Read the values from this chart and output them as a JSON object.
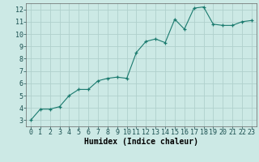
{
  "x": [
    0,
    1,
    2,
    3,
    4,
    5,
    6,
    7,
    8,
    9,
    10,
    11,
    12,
    13,
    14,
    15,
    16,
    17,
    18,
    19,
    20,
    21,
    22,
    23
  ],
  "y": [
    3.0,
    3.9,
    3.9,
    4.1,
    5.0,
    5.5,
    5.5,
    6.2,
    6.4,
    6.5,
    6.4,
    8.5,
    9.4,
    9.6,
    9.3,
    11.2,
    10.4,
    12.1,
    12.2,
    10.8,
    10.7,
    10.7,
    11.0,
    11.1
  ],
  "line_color": "#1a7a6e",
  "marker_color": "#1a7a6e",
  "bg_color": "#cce9e5",
  "grid_color": "#b0d0cc",
  "xlabel": "Humidex (Indice chaleur)",
  "xlim": [
    -0.5,
    23.5
  ],
  "ylim": [
    2.5,
    12.5
  ],
  "yticks": [
    3,
    4,
    5,
    6,
    7,
    8,
    9,
    10,
    11,
    12
  ],
  "xticks": [
    0,
    1,
    2,
    3,
    4,
    5,
    6,
    7,
    8,
    9,
    10,
    11,
    12,
    13,
    14,
    15,
    16,
    17,
    18,
    19,
    20,
    21,
    22,
    23
  ],
  "xlabel_fontsize": 7,
  "tick_fontsize": 6
}
